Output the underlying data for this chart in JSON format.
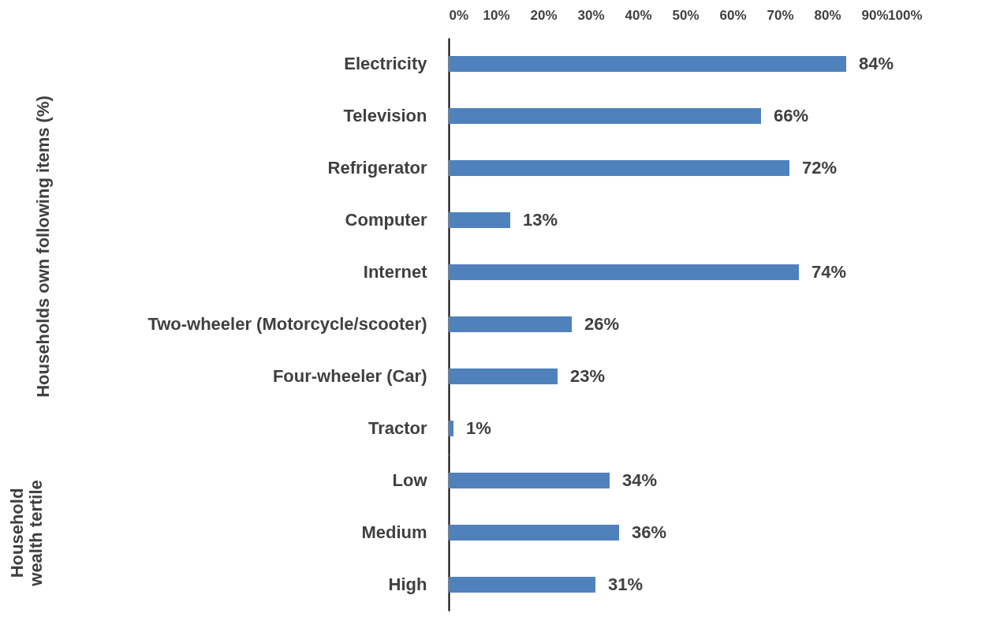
{
  "chart_data": [
    {
      "type": "bar",
      "orientation": "horizontal",
      "ylabel": "Households own following items (%)",
      "categories": [
        "Electricity",
        "Television",
        "Refrigerator",
        "Computer",
        "Internet",
        "Two-wheeler (Motorcycle/scooter)",
        "Four-wheeler (Car)",
        "Tractor"
      ],
      "values": [
        84,
        66,
        72,
        13,
        74,
        26,
        23,
        1
      ],
      "value_labels": [
        "84%",
        "66%",
        "72%",
        "13%",
        "74%",
        "26%",
        "23%",
        "1%"
      ],
      "color": "#4f81bd",
      "xlim": [
        0,
        100
      ],
      "xticks": [
        {
          "value": 0,
          "label": "0%"
        },
        {
          "value": 10,
          "label": "10%"
        },
        {
          "value": 20,
          "label": "20%"
        },
        {
          "value": 30,
          "label": "30%"
        },
        {
          "value": 40,
          "label": "40%"
        },
        {
          "value": 50,
          "label": "50%"
        },
        {
          "value": 60,
          "label": "60%"
        },
        {
          "value": 70,
          "label": "70%"
        },
        {
          "value": 80,
          "label": "80%"
        },
        {
          "value": 90,
          "label": "90%"
        },
        {
          "value": 100,
          "label": "100%"
        }
      ]
    },
    {
      "type": "bar",
      "orientation": "horizontal",
      "ylabel": "Household\nwealth tertile",
      "categories": [
        "Low",
        "Medium",
        "High"
      ],
      "values": [
        34,
        36,
        31
      ],
      "value_labels": [
        "34%",
        "36%",
        "31%"
      ],
      "color": "#4f81bd",
      "xlim": [
        0,
        100
      ],
      "tick_labels": "y"
    }
  ]
}
